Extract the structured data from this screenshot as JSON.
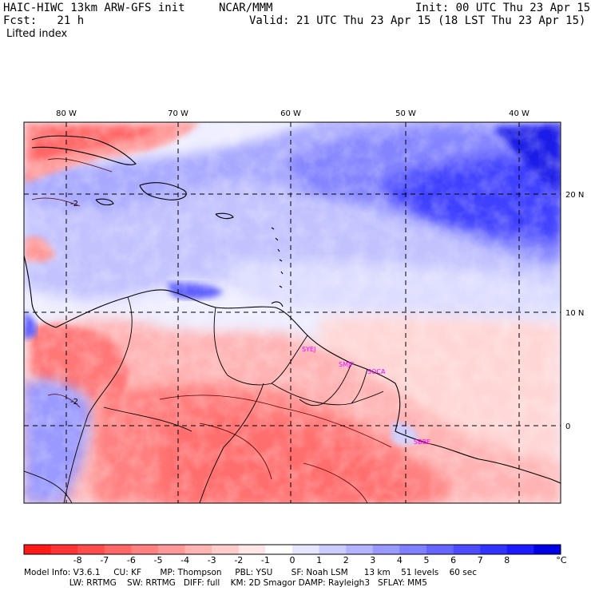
{
  "header": {
    "title_left": "HAIC-HIWC 13km ARW-GFS init",
    "title_org": "NCAR/MMM",
    "init": "Init: 00 UTC Thu 23 Apr 15",
    "fcst": "Fcst:   21 h",
    "valid": "Valid: 21 UTC Thu 23 Apr 15 (18 LST Thu 23 Apr 15)",
    "field": "Lifted index"
  },
  "map": {
    "lon_labels": [
      "80 W",
      "70 W",
      "60 W",
      "50 W",
      "40 W"
    ],
    "lat_labels": [
      "20 N",
      "10 N",
      "0"
    ],
    "contour_labels": [
      "-2",
      "-2"
    ],
    "stations": [
      "SYEJ",
      "SMJP",
      "SOCA",
      "SBBE"
    ],
    "colors": {
      "station": "#ff00ff",
      "grid": "#000000",
      "coast": "#000000"
    }
  },
  "colorbar": {
    "labels": [
      "-8",
      "-7",
      "-6",
      "-5",
      "-4",
      "-3",
      "-2",
      "-1",
      "0",
      "1",
      "2",
      "3",
      "4",
      "5",
      "6",
      "7",
      "8"
    ],
    "unit": "°C",
    "colors": [
      "#ff1a1a",
      "#ff3333",
      "#ff4d4d",
      "#ff6666",
      "#ff8080",
      "#ff9999",
      "#ffb3b3",
      "#ffcccc",
      "#ffe6e6",
      "#ffffff",
      "#e6e6ff",
      "#ccccff",
      "#b3b3ff",
      "#9999ff",
      "#7f7fff",
      "#6666ff",
      "#4d4dff",
      "#3333ff",
      "#1a1aff",
      "#0000e6"
    ]
  },
  "footer": {
    "line1": "Model Info: V3.6.1     CU: KF       MP: Thompson     PBL: YSU       SF: Noah LSM      13 km    51 levels    60 sec",
    "line2": "                 LW: RRTMG    SW: RRTMG   DIFF: full    KM: 2D Smagor DAMP: Rayleigh3   SFLAY: MM5"
  }
}
